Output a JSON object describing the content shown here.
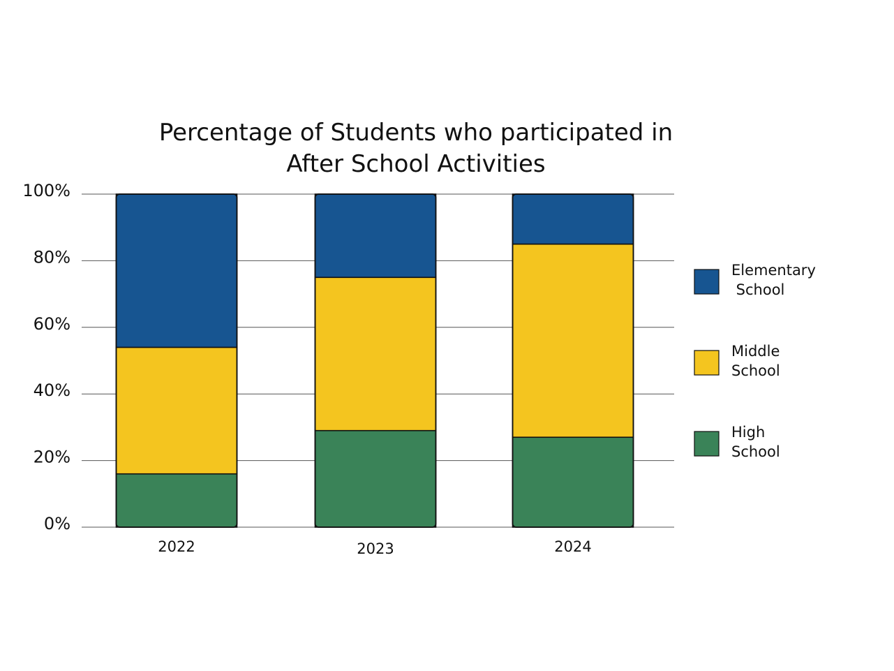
{
  "chart_data": {
    "type": "bar",
    "stacked": true,
    "title_lines": [
      "Percentage of Students who participated in",
      "After School Activities"
    ],
    "categories": [
      "2022",
      "2023",
      "2024"
    ],
    "series": [
      {
        "name": "High School",
        "legend_lines": [
          "High",
          "School"
        ],
        "color": "#3a8358",
        "values": [
          16,
          29,
          27
        ]
      },
      {
        "name": "Middle School",
        "legend_lines": [
          "Middle",
          "School"
        ],
        "color": "#f4c51f",
        "values": [
          38,
          46,
          58
        ]
      },
      {
        "name": "Elementary School",
        "legend_lines": [
          "Elementary",
          " School"
        ],
        "color": "#175591",
        "values": [
          46,
          25,
          15
        ]
      }
    ],
    "yticks": [
      {
        "value": 0,
        "label": "0%"
      },
      {
        "value": 20,
        "label": "20%"
      },
      {
        "value": 40,
        "label": "40%"
      },
      {
        "value": 60,
        "label": "60%"
      },
      {
        "value": 80,
        "label": "80%"
      },
      {
        "value": 100,
        "label": "100%"
      }
    ],
    "ylim": [
      0,
      100
    ],
    "grid": true,
    "legend_position": "right"
  }
}
